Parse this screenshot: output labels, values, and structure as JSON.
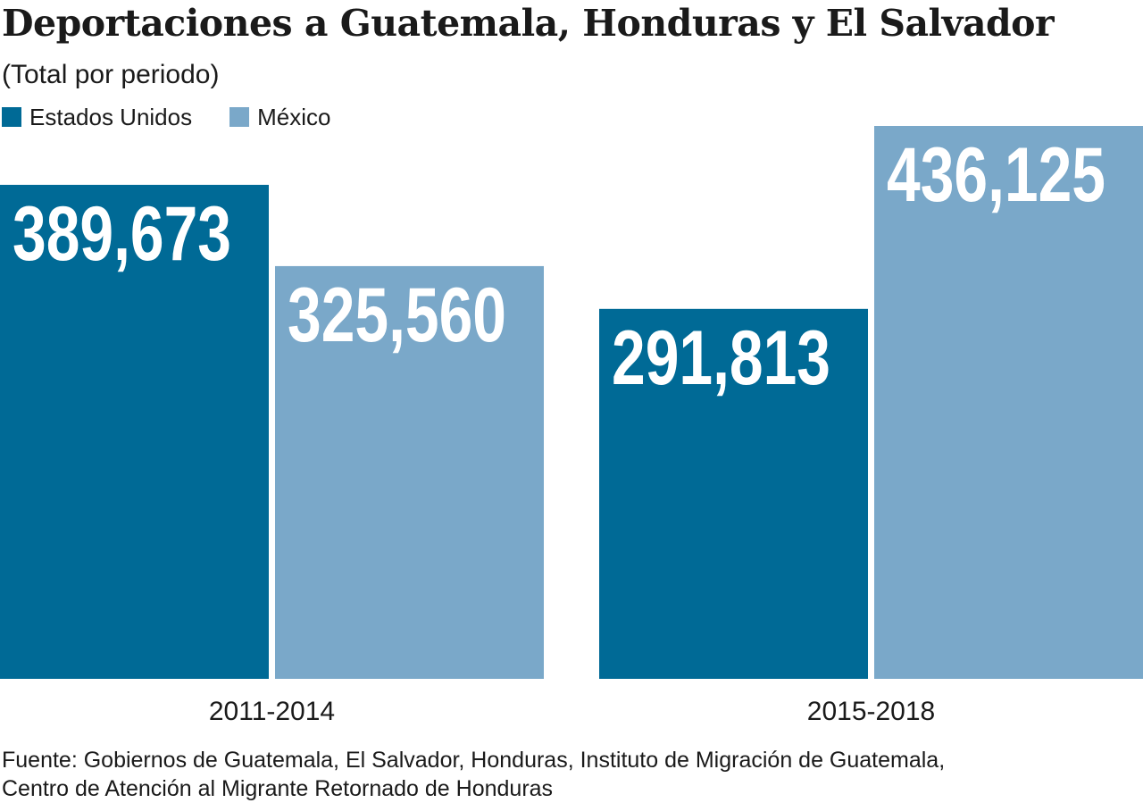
{
  "title": "Deportaciones a Guatemala, Honduras y El Salvador",
  "subtitle": "(Total por periodo)",
  "legend": [
    {
      "label": "Estados Unidos",
      "color": "#006a96"
    },
    {
      "label": "México",
      "color": "#7aa8c9"
    }
  ],
  "chart_data": {
    "type": "bar",
    "title": "Deportaciones a Guatemala, Honduras y El Salvador",
    "subtitle": "(Total por periodo)",
    "categories": [
      "2011-2014",
      "2015-2018"
    ],
    "series": [
      {
        "name": "Estados Unidos",
        "values": [
          389673,
          291813
        ],
        "labels": [
          "389,673",
          "291,813"
        ],
        "color": "#006a96"
      },
      {
        "name": "México",
        "values": [
          325560,
          436125
        ],
        "labels": [
          "325,560",
          "436,125"
        ],
        "color": "#7aa8c9"
      }
    ],
    "xlabel": "",
    "ylabel": "",
    "ylim": [
      0,
      436125
    ],
    "grid": false,
    "legend_position": "top-left"
  },
  "source": {
    "line1": "Fuente: Gobiernos de Guatemala, El Salvador, Honduras, Instituto de Migración de Guatemala,",
    "line2": "Centro de Atención al Migrante Retornado de Honduras"
  }
}
